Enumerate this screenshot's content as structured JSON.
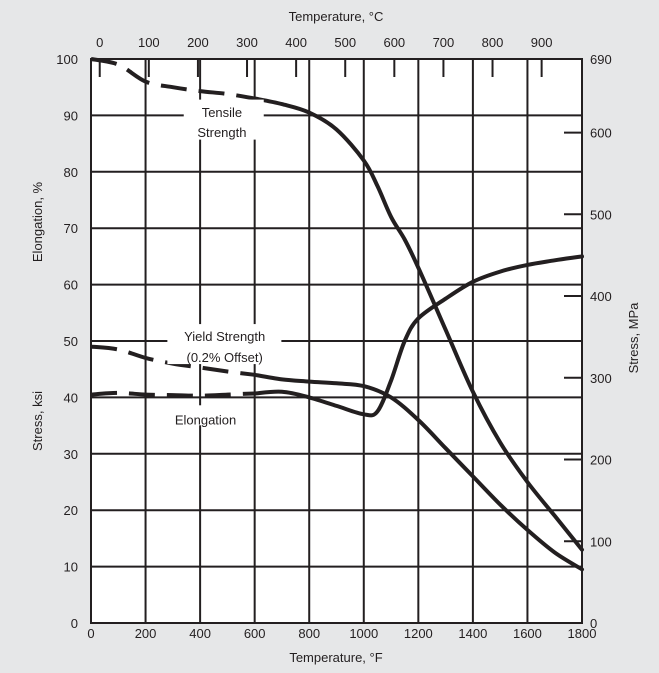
{
  "chart_data": {
    "type": "line",
    "title": "",
    "xlabel": "Temperature, °F",
    "x2label": "Temperature, °C",
    "ylabel_elongation": "Elongation, %",
    "ylabel_stress": "Stress, ksi",
    "y2label": "Stress, MPa",
    "xlim": [
      0,
      1800
    ],
    "ylim": [
      0,
      100
    ],
    "y2lim": [
      0,
      690
    ],
    "x_ticks": [
      0,
      200,
      400,
      600,
      800,
      1000,
      1200,
      1400,
      1600,
      1800
    ],
    "x2_ticks": [
      0,
      100,
      200,
      300,
      400,
      500,
      600,
      700,
      800,
      900
    ],
    "y_ticks": [
      0,
      10,
      20,
      30,
      40,
      50,
      60,
      70,
      80,
      90,
      100
    ],
    "y2_ticks": [
      0,
      100,
      200,
      300,
      400,
      500,
      600,
      690
    ],
    "grid": true,
    "colors": {
      "background": "#e6e7e8",
      "line": "#231f20",
      "plot": "#ffffff"
    },
    "series": [
      {
        "name": "Tensile Strength",
        "dashed_until": 600,
        "x": [
          0,
          100,
          200,
          300,
          400,
          500,
          600,
          700,
          800,
          900,
          1000,
          1050,
          1100,
          1150,
          1200,
          1300,
          1400,
          1500,
          1600,
          1700,
          1800
        ],
        "y": [
          100,
          99,
          96,
          95,
          94.3,
          93.8,
          93,
          92,
          90.5,
          87.5,
          82,
          77.5,
          72,
          68,
          63,
          52,
          41,
          32,
          25,
          19,
          13
        ]
      },
      {
        "name": "Yield Strength (0.2% Offset)",
        "dashed_until": 600,
        "x": [
          0,
          100,
          200,
          300,
          400,
          500,
          600,
          700,
          800,
          900,
          1000,
          1100,
          1200,
          1300,
          1400,
          1500,
          1600,
          1700,
          1800
        ],
        "y": [
          49,
          48.5,
          47,
          46,
          45.3,
          44.6,
          44,
          43.2,
          42.8,
          42.5,
          42,
          40,
          36,
          31,
          26,
          21,
          16.5,
          12.5,
          9.5
        ]
      },
      {
        "name": "Elongation",
        "dashed_until": 600,
        "x": [
          0,
          100,
          200,
          300,
          400,
          500,
          600,
          700,
          800,
          900,
          1000,
          1050,
          1100,
          1150,
          1200,
          1300,
          1400,
          1500,
          1600,
          1700,
          1800
        ],
        "y": [
          40.5,
          40.8,
          40.5,
          40.4,
          40.3,
          40.5,
          40.7,
          41,
          40,
          38.5,
          37,
          37.5,
          43,
          50,
          54,
          57.5,
          60.5,
          62.3,
          63.5,
          64.3,
          65
        ]
      }
    ],
    "annotations": {
      "tensile_line1": "Tensile",
      "tensile_line2": "Strength",
      "yield_line1": "Yield Strength",
      "yield_line2": "(0.2% Offset)",
      "elongation": "Elongation"
    }
  }
}
